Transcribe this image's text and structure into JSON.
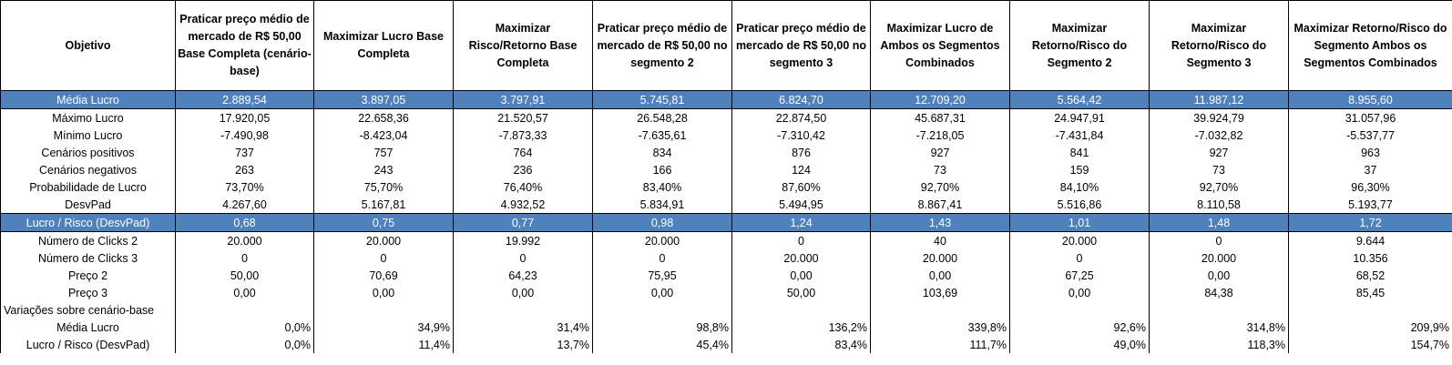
{
  "header": {
    "objective_label": "Objetivo",
    "scenarios": [
      "Praticar preço médio de mercado de R$ 50,00 Base  Completa (cenário-base)",
      "Maximizar Lucro Base Completa",
      "Maximizar Risco/Retorno Base Completa",
      "Praticar preço médio de mercado de R$ 50,00 no segmento 2",
      "Praticar preço médio de mercado de R$ 50,00 no segmento 3",
      "Maximizar Lucro de Ambos os Segmentos Combinados",
      "Maximizar Retorno/Risco do Segmento 2",
      "Maximizar Retorno/Risco do Segmento 3",
      "Maximizar Retorno/Risco do Segmento Ambos os Segmentos Combinados"
    ]
  },
  "rows": [
    {
      "label": "Média Lucro",
      "values": [
        "2.889,54",
        "3.897,05",
        "3.797,91",
        "5.745,81",
        "6.824,70",
        "12.709,20",
        "5.564,42",
        "11.987,12",
        "8.955,60"
      ]
    },
    {
      "label": "Máximo Lucro",
      "values": [
        "17.920,05",
        "22.658,36",
        "21.520,57",
        "26.548,28",
        "22.874,50",
        "45.687,31",
        "24.947,91",
        "39.924,79",
        "31.057,96"
      ]
    },
    {
      "label": "Mínimo Lucro",
      "values": [
        "-7.490,98",
        "-8.423,04",
        "-7.873,33",
        "-7.635,61",
        "-7.310,42",
        "-7.218,05",
        "-7.431,84",
        "-7.032,82",
        "-5.537,77"
      ]
    },
    {
      "label": "Cenários positivos",
      "values": [
        "737",
        "757",
        "764",
        "834",
        "876",
        "927",
        "841",
        "927",
        "963"
      ]
    },
    {
      "label": "Cenários negativos",
      "values": [
        "263",
        "243",
        "236",
        "166",
        "124",
        "73",
        "159",
        "73",
        "37"
      ]
    },
    {
      "label": "Probabilidade de Lucro",
      "values": [
        "73,70%",
        "75,70%",
        "76,40%",
        "83,40%",
        "87,60%",
        "92,70%",
        "84,10%",
        "92,70%",
        "96,30%"
      ]
    },
    {
      "label": "DesvPad",
      "values": [
        "4.267,60",
        "5.167,81",
        "4.932,52",
        "5.834,91",
        "5.494,95",
        "8.867,41",
        "5.516,86",
        "8.110,58",
        "5.193,77"
      ]
    },
    {
      "label": "Lucro / Risco (DesvPad)",
      "values": [
        "0,68",
        "0,75",
        "0,77",
        "0,98",
        "1,24",
        "1,43",
        "1,01",
        "1,48",
        "1,72"
      ]
    },
    {
      "label": "Número de Clicks 2",
      "values": [
        "20.000",
        "20.000",
        "19.992",
        "20.000",
        "0",
        "40",
        "20.000",
        "0",
        "9.644"
      ]
    },
    {
      "label": "Número de Clicks 3",
      "values": [
        "0",
        "0",
        "0",
        "0",
        "20.000",
        "20.000",
        "0",
        "20.000",
        "10.356"
      ]
    },
    {
      "label": "Preço 2",
      "values": [
        "50,00",
        "70,69",
        "64,23",
        "75,95",
        "0,00",
        "0,00",
        "67,25",
        "0,00",
        "68,52"
      ]
    },
    {
      "label": "Preço 3",
      "values": [
        "0,00",
        "0,00",
        "0,00",
        "0,00",
        "50,00",
        "103,69",
        "0,00",
        "84,38",
        "85,45"
      ]
    }
  ],
  "variations": {
    "title": "Variações sobre cenário-base",
    "rows": [
      {
        "label": "Média Lucro",
        "values": [
          "0,0%",
          "34,9%",
          "31,4%",
          "98,8%",
          "136,2%",
          "339,8%",
          "92,6%",
          "314,8%",
          "209,9%"
        ]
      },
      {
        "label": "Lucro / Risco (DesvPad)",
        "values": [
          "0,0%",
          "11,4%",
          "13,7%",
          "45,4%",
          "83,4%",
          "111,7%",
          "49,0%",
          "118,3%",
          "154,7%"
        ]
      }
    ]
  },
  "highlight_color": "#4f81bd"
}
